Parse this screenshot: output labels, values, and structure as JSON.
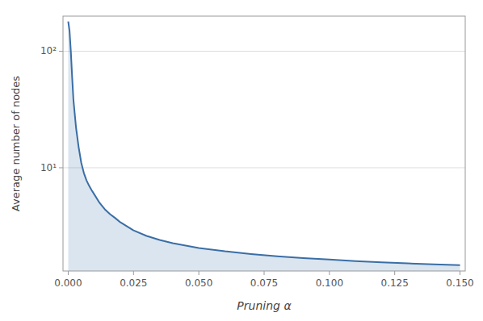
{
  "chart_data": {
    "type": "area",
    "xlabel": "Pruning α",
    "ylabel": "Average number of nodes",
    "color": "#3a6ea5",
    "log": "y",
    "grid": true,
    "x": [
      0.0,
      0.0005,
      0.001,
      0.0015,
      0.002,
      0.003,
      0.004,
      0.005,
      0.006,
      0.007,
      0.008,
      0.009,
      0.01,
      0.012,
      0.014,
      0.016,
      0.018,
      0.02,
      0.025,
      0.03,
      0.035,
      0.04,
      0.05,
      0.06,
      0.07,
      0.08,
      0.09,
      0.1,
      0.11,
      0.12,
      0.13,
      0.14,
      0.15
    ],
    "values": [
      180,
      150,
      100,
      60,
      38,
      22,
      15,
      11,
      9,
      7.8,
      7.0,
      6.4,
      5.9,
      5.0,
      4.4,
      4.0,
      3.7,
      3.4,
      2.9,
      2.6,
      2.4,
      2.25,
      2.05,
      1.92,
      1.82,
      1.74,
      1.68,
      1.63,
      1.58,
      1.54,
      1.51,
      1.48,
      1.46
    ],
    "xlim": [
      -0.002,
      0.152
    ],
    "ylim": [
      1.3,
      200
    ],
    "xticks": [
      {
        "value": 0,
        "label": "0.000"
      },
      0.025,
      {
        "value": 0.05,
        "label": "0.050"
      },
      0.075,
      {
        "value": 0.1,
        "label": "0.100"
      },
      0.125,
      {
        "value": 0.15,
        "label": "0.150"
      }
    ],
    "yticks": [
      {
        "value": 10,
        "label": "10¹"
      },
      {
        "value": 100,
        "label": "10²"
      }
    ]
  }
}
